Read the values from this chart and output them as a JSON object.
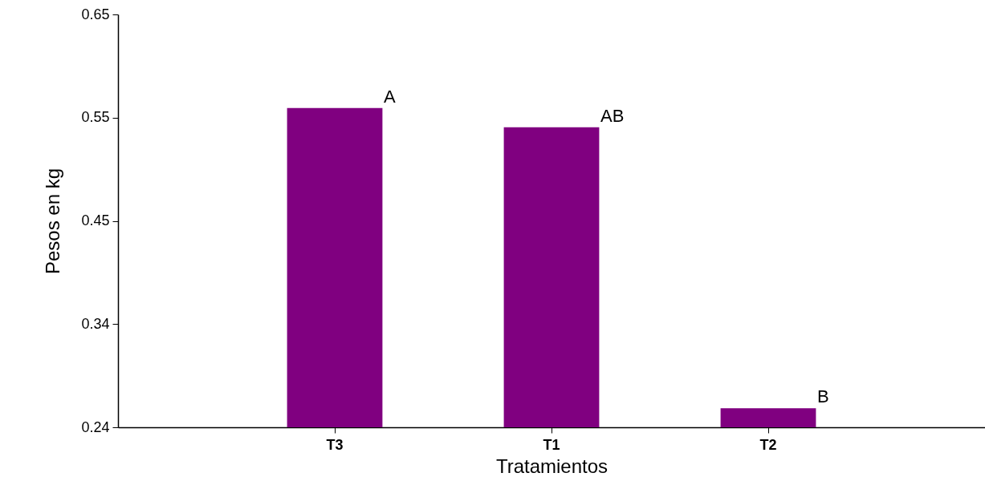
{
  "chart_data": {
    "type": "bar",
    "xlabel": "Tratamientos",
    "ylabel": "Pesos en kg",
    "categories": [
      "T3",
      "T1",
      "T2"
    ],
    "values": [
      0.557,
      0.538,
      0.259
    ],
    "color": "#800080",
    "ylim": [
      0.24,
      0.65
    ],
    "yticks": [
      0.24,
      {
        "value": 0.3425,
        "label": "0.34"
      },
      {
        "value": 0.445,
        "label": "0.45"
      },
      {
        "value": 0.5475,
        "label": "0.55"
      },
      0.65
    ],
    "grid": false,
    "annotations": [
      {
        "text": "A",
        "x": "T3",
        "y": 0.557
      },
      {
        "text": "AB",
        "x": "T1",
        "y": 0.538
      },
      {
        "text": "B",
        "x": "T2",
        "y": 0.259
      }
    ]
  }
}
